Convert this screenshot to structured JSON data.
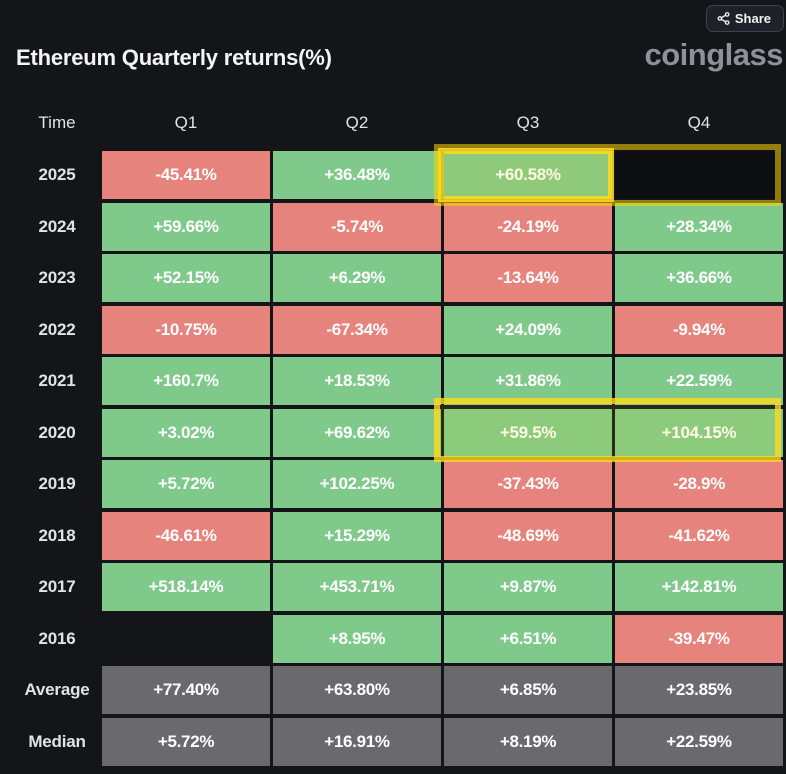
{
  "header": {
    "title": "Ethereum Quarterly returns(%)",
    "share_label": "Share",
    "logo": "coinglass"
  },
  "table": {
    "columns": [
      "Time",
      "Q1",
      "Q2",
      "Q3",
      "Q4"
    ],
    "rows": [
      {
        "label": "2025",
        "cells": [
          {
            "value": "-45.41%",
            "type": "negative"
          },
          {
            "value": "+36.48%",
            "type": "positive"
          },
          {
            "value": "+60.58%",
            "type": "positive",
            "highlighted": true
          },
          {
            "value": "",
            "type": "empty",
            "highlighted": true
          }
        ]
      },
      {
        "label": "2024",
        "cells": [
          {
            "value": "+59.66%",
            "type": "positive"
          },
          {
            "value": "-5.74%",
            "type": "negative"
          },
          {
            "value": "-24.19%",
            "type": "negative"
          },
          {
            "value": "+28.34%",
            "type": "positive"
          }
        ]
      },
      {
        "label": "2023",
        "cells": [
          {
            "value": "+52.15%",
            "type": "positive"
          },
          {
            "value": "+6.29%",
            "type": "positive"
          },
          {
            "value": "-13.64%",
            "type": "negative"
          },
          {
            "value": "+36.66%",
            "type": "positive"
          }
        ]
      },
      {
        "label": "2022",
        "cells": [
          {
            "value": "-10.75%",
            "type": "negative"
          },
          {
            "value": "-67.34%",
            "type": "negative"
          },
          {
            "value": "+24.09%",
            "type": "positive"
          },
          {
            "value": "-9.94%",
            "type": "negative"
          }
        ]
      },
      {
        "label": "2021",
        "cells": [
          {
            "value": "+160.7%",
            "type": "positive"
          },
          {
            "value": "+18.53%",
            "type": "positive"
          },
          {
            "value": "+31.86%",
            "type": "positive"
          },
          {
            "value": "+22.59%",
            "type": "positive"
          }
        ]
      },
      {
        "label": "2020",
        "cells": [
          {
            "value": "+3.02%",
            "type": "positive"
          },
          {
            "value": "+69.62%",
            "type": "positive"
          },
          {
            "value": "+59.5%",
            "type": "positive",
            "highlighted": true
          },
          {
            "value": "+104.15%",
            "type": "positive",
            "highlighted": true
          }
        ]
      },
      {
        "label": "2019",
        "cells": [
          {
            "value": "+5.72%",
            "type": "positive"
          },
          {
            "value": "+102.25%",
            "type": "positive"
          },
          {
            "value": "-37.43%",
            "type": "negative"
          },
          {
            "value": "-28.9%",
            "type": "negative"
          }
        ]
      },
      {
        "label": "2018",
        "cells": [
          {
            "value": "-46.61%",
            "type": "negative"
          },
          {
            "value": "+15.29%",
            "type": "positive"
          },
          {
            "value": "-48.69%",
            "type": "negative"
          },
          {
            "value": "-41.62%",
            "type": "negative"
          }
        ]
      },
      {
        "label": "2017",
        "cells": [
          {
            "value": "+518.14%",
            "type": "positive"
          },
          {
            "value": "+453.71%",
            "type": "positive"
          },
          {
            "value": "+9.87%",
            "type": "positive"
          },
          {
            "value": "+142.81%",
            "type": "positive"
          }
        ]
      },
      {
        "label": "2016",
        "cells": [
          {
            "value": "",
            "type": "empty"
          },
          {
            "value": "+8.95%",
            "type": "positive"
          },
          {
            "value": "+6.51%",
            "type": "positive"
          },
          {
            "value": "-39.47%",
            "type": "negative"
          }
        ]
      },
      {
        "label": "Average",
        "cells": [
          {
            "value": "+77.40%",
            "type": "neutral"
          },
          {
            "value": "+63.80%",
            "type": "neutral"
          },
          {
            "value": "+6.85%",
            "type": "neutral"
          },
          {
            "value": "+23.85%",
            "type": "neutral"
          }
        ]
      },
      {
        "label": "Median",
        "cells": [
          {
            "value": "+5.72%",
            "type": "neutral"
          },
          {
            "value": "+16.91%",
            "type": "neutral"
          },
          {
            "value": "+8.19%",
            "type": "neutral"
          },
          {
            "value": "+22.59%",
            "type": "neutral"
          }
        ]
      }
    ]
  },
  "colors": {
    "background": "#141519",
    "positive": "#7fc98b",
    "negative": "#e6837d",
    "neutral": "#6a6a6e",
    "highlight": "#ffd700",
    "logo_gray": "#8d9199"
  },
  "chart_data": {
    "type": "table",
    "title": "Ethereum Quarterly returns(%)",
    "columns": [
      "Time",
      "Q1",
      "Q2",
      "Q3",
      "Q4"
    ],
    "rows": [
      [
        "2025",
        -45.41,
        36.48,
        60.58,
        null
      ],
      [
        "2024",
        59.66,
        -5.74,
        -24.19,
        28.34
      ],
      [
        "2023",
        52.15,
        6.29,
        -13.64,
        36.66
      ],
      [
        "2022",
        -10.75,
        -67.34,
        24.09,
        -9.94
      ],
      [
        "2021",
        160.7,
        18.53,
        31.86,
        22.59
      ],
      [
        "2020",
        3.02,
        69.62,
        59.5,
        104.15
      ],
      [
        "2019",
        5.72,
        102.25,
        -37.43,
        -28.9
      ],
      [
        "2018",
        -46.61,
        15.29,
        -48.69,
        -41.62
      ],
      [
        "2017",
        518.14,
        453.71,
        9.87,
        142.81
      ],
      [
        "2016",
        null,
        8.95,
        6.51,
        -39.47
      ],
      [
        "Average",
        77.4,
        63.8,
        6.85,
        23.85
      ],
      [
        "Median",
        5.72,
        16.91,
        8.19,
        22.59
      ]
    ],
    "color_coding": "green = positive return, red = negative return, gray = summary rows, dark = no data",
    "highlights": [
      "2025 Q3",
      "2025 Q4",
      "2020 Q3",
      "2020 Q4"
    ]
  }
}
